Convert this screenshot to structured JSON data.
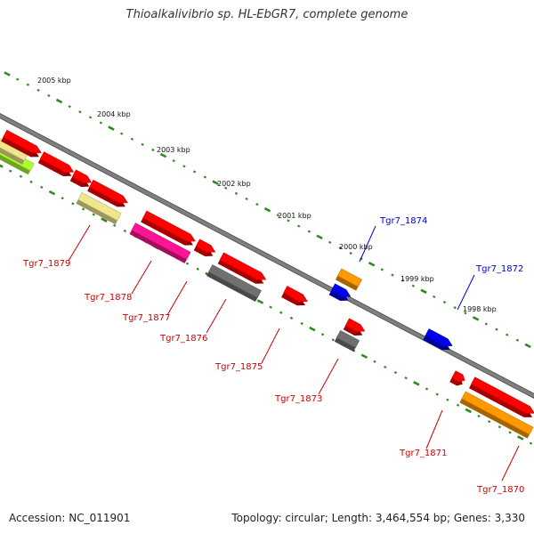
{
  "header": {
    "title": "Thioalkalivibrio sp. HL-EbGR7, complete genome"
  },
  "footer": {
    "accession": "Accession: NC_011901",
    "topology": "Topology: circular; Length: 3,464,554 bp; Genes: 3,330"
  },
  "colors": {
    "backbone": "#808080",
    "tick": "#2e8b1e",
    "label_red": "#cc0000",
    "label_blue": "#0000cc",
    "gene_red": "#ff0000",
    "gene_blue": "#0000ee",
    "gene_orange": "#ff9900",
    "gene_gray": "#707070",
    "gene_pink": "#ff1493",
    "gene_khaki": "#f0e68c",
    "gene_lime": "#adff2f"
  },
  "scale_labels": [
    "2005 kbp",
    "2004 kbp",
    "2003 kbp",
    "2002 kbp",
    "2001 kbp",
    "2000 kbp",
    "1999 kbp",
    "1998 kbp"
  ],
  "gene_labels": [
    {
      "text": "Tgr7_1874",
      "color": "blue"
    },
    {
      "text": "Tgr7_1872",
      "color": "blue"
    },
    {
      "text": "Tgr7_1879",
      "color": "red"
    },
    {
      "text": "Tgr7_1878",
      "color": "red"
    },
    {
      "text": "Tgr7_1877",
      "color": "red"
    },
    {
      "text": "Tgr7_1876",
      "color": "red"
    },
    {
      "text": "Tgr7_1875",
      "color": "red"
    },
    {
      "text": "Tgr7_1873",
      "color": "red"
    },
    {
      "text": "Tgr7_1871",
      "color": "red"
    },
    {
      "text": "Tgr7_1870",
      "color": "red"
    }
  ],
  "genes": [
    {
      "name": "gene-lime",
      "color": "lime",
      "strand": "outer"
    },
    {
      "name": "gene-khaki-outer",
      "color": "khaki",
      "strand": "outer"
    },
    {
      "name": "gene-red-a",
      "color": "red",
      "strand": "outer"
    },
    {
      "name": "gene-red-b",
      "color": "red",
      "strand": "outer"
    },
    {
      "name": "gene-red-c",
      "color": "red",
      "strand": "outer"
    },
    {
      "name": "gene-red-d",
      "color": "red",
      "strand": "outer"
    },
    {
      "name": "tgr7-1879",
      "color": "khaki",
      "strand": "inner"
    },
    {
      "name": "gene-red-e",
      "color": "red",
      "strand": "outer"
    },
    {
      "name": "tgr7-1878",
      "color": "pink",
      "strand": "inner"
    },
    {
      "name": "gene-red-f",
      "color": "red",
      "strand": "outer"
    },
    {
      "name": "gene-red-g",
      "color": "red",
      "strand": "outer"
    },
    {
      "name": "tgr7-1876",
      "color": "gray",
      "strand": "inner"
    },
    {
      "name": "tgr7-1875",
      "color": "red",
      "strand": "inner"
    },
    {
      "name": "tgr7-1874",
      "color": "orange",
      "strand": "outer"
    },
    {
      "name": "gene-blue-a",
      "color": "blue",
      "strand": "outer"
    },
    {
      "name": "gene-red-h",
      "color": "red",
      "strand": "inner"
    },
    {
      "name": "tgr7-1873",
      "color": "gray",
      "strand": "inner"
    },
    {
      "name": "tgr7-1872",
      "color": "blue",
      "strand": "outer"
    },
    {
      "name": "tgr7-1871",
      "color": "red",
      "strand": "inner"
    },
    {
      "name": "gene-red-i",
      "color": "red",
      "strand": "outer"
    },
    {
      "name": "tgr7-1870",
      "color": "orange",
      "strand": "inner"
    }
  ]
}
